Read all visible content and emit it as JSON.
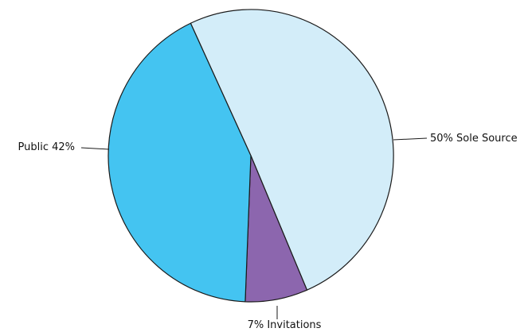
{
  "chart_data": {
    "type": "pie",
    "title": "",
    "slices": [
      {
        "label": "Sole Source",
        "value": 50,
        "display_label": "50% Sole Source",
        "color": "#d3edf9"
      },
      {
        "label": "Invitations",
        "value": 7,
        "display_label": "7% Invitations",
        "color": "#8c66ae"
      },
      {
        "label": "Public",
        "value": 42,
        "display_label": "Public 42%",
        "color": "#44c4f1"
      }
    ],
    "legend": "none"
  }
}
